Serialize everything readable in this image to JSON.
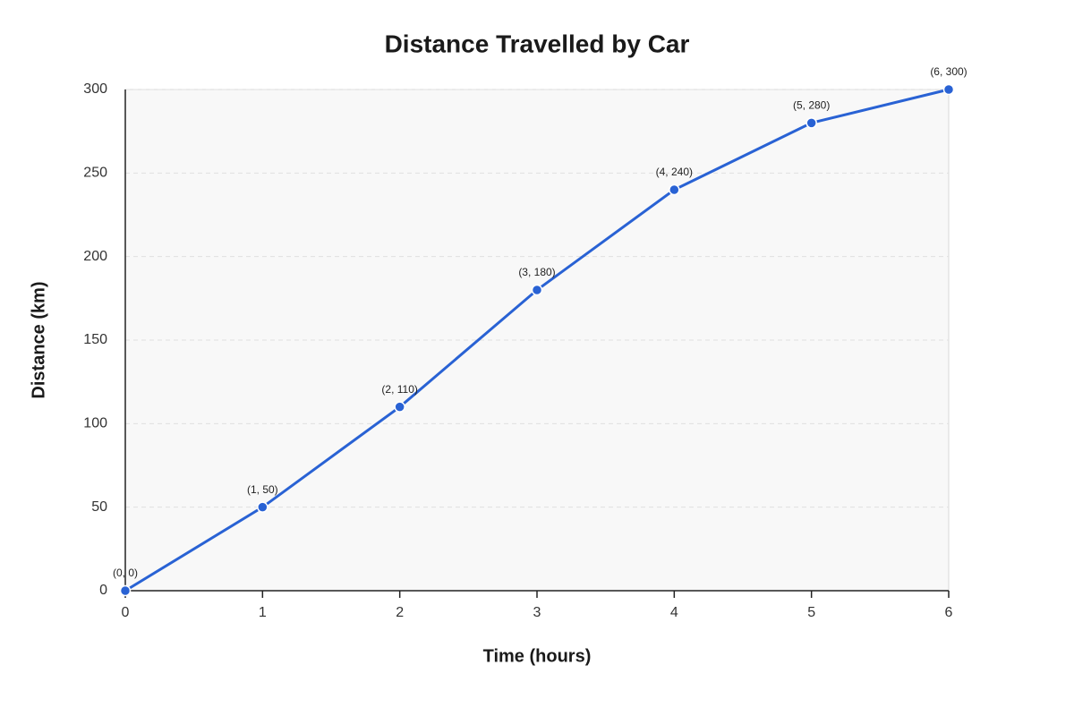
{
  "chart_data": {
    "type": "line",
    "title": "Distance Travelled by Car",
    "x_label": "Time (hours)",
    "y_label": "Distance (km)",
    "x": [
      0,
      1,
      2,
      3,
      4,
      5,
      6
    ],
    "values": [
      0,
      50,
      110,
      180,
      240,
      280,
      300
    ],
    "value_labels": [
      "(0, 0)",
      "(1, 50)",
      "(2, 110)",
      "(3, 180)",
      "(4, 240)",
      "(5, 280)",
      "(6, 300)"
    ],
    "color": "#2962d4",
    "xlim": [
      0,
      6
    ],
    "xticks": [
      0,
      1,
      2,
      3,
      4,
      5,
      6
    ],
    "ylim": [
      0,
      300
    ],
    "yticks": [
      0,
      50,
      100,
      150,
      200,
      250,
      300
    ],
    "grid": true
  }
}
